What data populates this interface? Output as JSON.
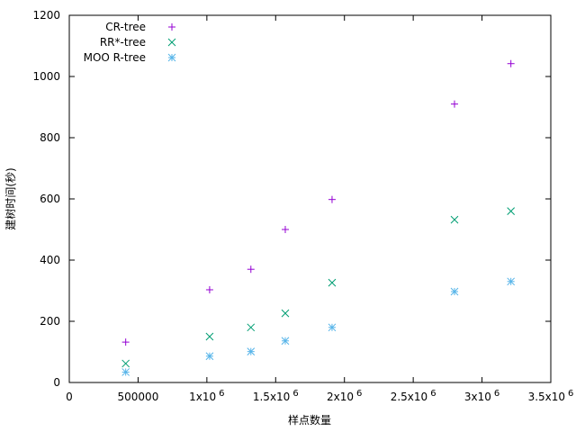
{
  "chart_data": {
    "type": "scatter",
    "xlabel": "样点数量",
    "ylabel": "建树时间(秒)",
    "xlim": [
      0,
      3500000
    ],
    "ylim": [
      0,
      1200
    ],
    "x_ticks": [
      {
        "value": 0,
        "label": "0",
        "sup": ""
      },
      {
        "value": 500000,
        "label": "500000",
        "sup": ""
      },
      {
        "value": 1000000,
        "label": "1x10",
        "sup": "6"
      },
      {
        "value": 1500000,
        "label": "1.5x10",
        "sup": "6"
      },
      {
        "value": 2000000,
        "label": "2x10",
        "sup": "6"
      },
      {
        "value": 2500000,
        "label": "2.5x10",
        "sup": "6"
      },
      {
        "value": 3000000,
        "label": "3x10",
        "sup": "6"
      },
      {
        "value": 3500000,
        "label": "3.5x10",
        "sup": "6"
      }
    ],
    "y_ticks": [
      0,
      200,
      400,
      600,
      800,
      1000,
      1200
    ],
    "legend_position": "top-left",
    "series": [
      {
        "name": "CR-tree",
        "marker": "plus",
        "color": "#9400d3",
        "points": [
          [
            410000,
            132
          ],
          [
            1020000,
            303
          ],
          [
            1320000,
            370
          ],
          [
            1570000,
            500
          ],
          [
            1910000,
            598
          ],
          [
            2800000,
            910
          ],
          [
            3210000,
            1042
          ]
        ]
      },
      {
        "name": "RR*-tree",
        "marker": "cross",
        "color": "#009e73",
        "points": [
          [
            410000,
            62
          ],
          [
            1020000,
            150
          ],
          [
            1320000,
            180
          ],
          [
            1570000,
            226
          ],
          [
            1910000,
            326
          ],
          [
            2800000,
            532
          ],
          [
            3210000,
            560
          ]
        ]
      },
      {
        "name": "MOO R-tree",
        "marker": "star",
        "color": "#56b4e9",
        "points": [
          [
            410000,
            34
          ],
          [
            1020000,
            86
          ],
          [
            1320000,
            101
          ],
          [
            1570000,
            136
          ],
          [
            1910000,
            180
          ],
          [
            2800000,
            297
          ],
          [
            3210000,
            330
          ]
        ]
      }
    ]
  }
}
